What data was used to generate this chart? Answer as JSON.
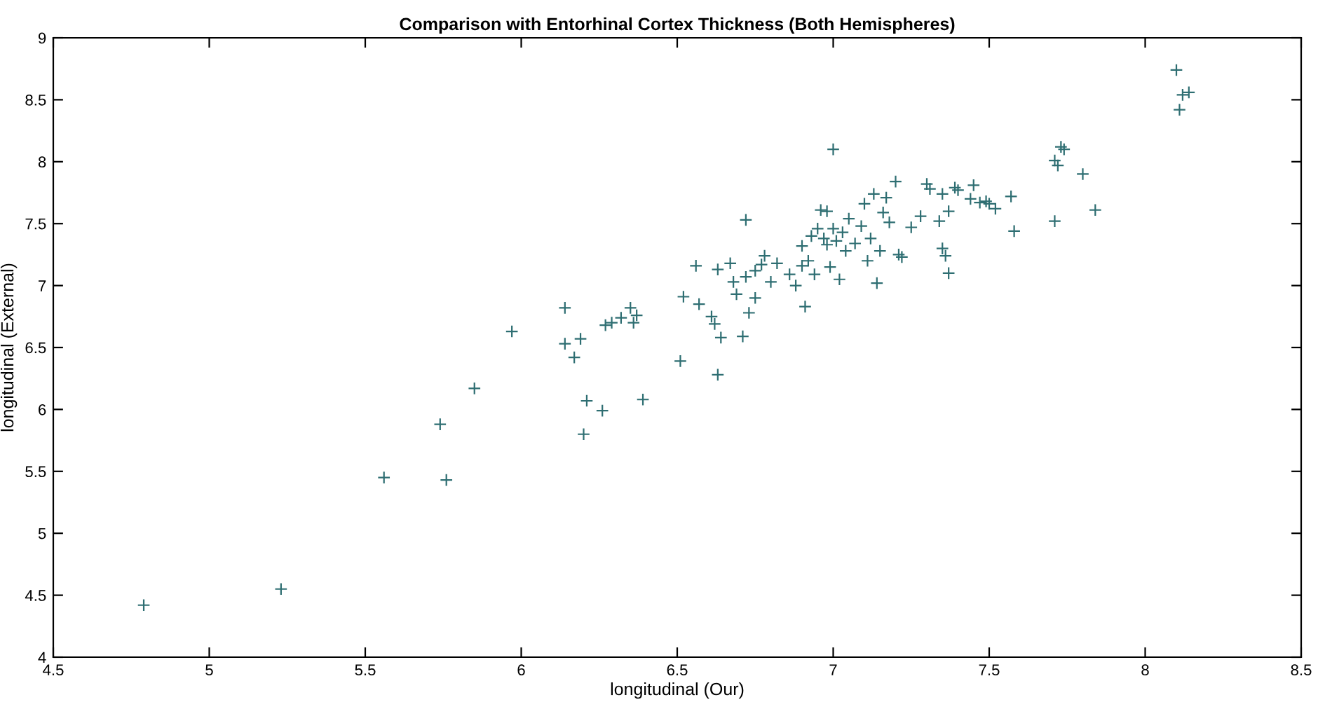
{
  "chart_data": {
    "type": "scatter",
    "title": "Comparison with Entorhinal Cortex Thickness (Both Hemispheres)",
    "xlabel": "longitudinal (Our)",
    "ylabel": "longitudinal (External)",
    "xlim": [
      4.5,
      8.5
    ],
    "ylim": [
      4,
      9
    ],
    "xticks": [
      4.5,
      5,
      5.5,
      6,
      6.5,
      7,
      7.5,
      8,
      8.5
    ],
    "yticks": [
      4,
      4.5,
      5,
      5.5,
      6,
      6.5,
      7,
      7.5,
      8,
      8.5,
      9
    ],
    "grid": false,
    "marker": "cross",
    "series": [
      {
        "color": "#2e6e72",
        "x": [
          4.79,
          5.23,
          5.56,
          5.74,
          5.76,
          5.85,
          5.97,
          6.14,
          6.14,
          6.17,
          6.19,
          6.2,
          6.21,
          6.26,
          6.27,
          6.29,
          6.32,
          6.35,
          6.36,
          6.37,
          6.39,
          6.51,
          6.52,
          6.56,
          6.57,
          6.61,
          6.62,
          6.63,
          6.63,
          6.64,
          6.67,
          6.68,
          6.69,
          6.71,
          6.72,
          6.72,
          6.73,
          6.75,
          6.75,
          6.77,
          6.78,
          6.8,
          6.82,
          6.86,
          6.88,
          6.9,
          6.9,
          6.91,
          6.92,
          6.93,
          6.94,
          6.95,
          6.96,
          6.97,
          6.98,
          6.98,
          6.99,
          7.0,
          7.0,
          7.01,
          7.02,
          7.03,
          7.04,
          7.05,
          7.07,
          7.09,
          7.1,
          7.11,
          7.12,
          7.13,
          7.14,
          7.15,
          7.16,
          7.17,
          7.18,
          7.2,
          7.21,
          7.22,
          7.25,
          7.28,
          7.3,
          7.31,
          7.34,
          7.35,
          7.35,
          7.36,
          7.37,
          7.37,
          7.39,
          7.4,
          7.44,
          7.45,
          7.47,
          7.49,
          7.5,
          7.52,
          7.57,
          7.58,
          7.71,
          7.71,
          7.72,
          7.73,
          7.74,
          7.8,
          7.84,
          8.1,
          8.11,
          8.12,
          8.14
        ],
        "values": [
          4.42,
          4.55,
          5.45,
          5.88,
          5.43,
          6.17,
          6.63,
          6.82,
          6.53,
          6.42,
          6.57,
          5.8,
          6.07,
          5.99,
          6.68,
          6.7,
          6.74,
          6.82,
          6.7,
          6.76,
          6.08,
          6.39,
          6.91,
          7.16,
          6.85,
          6.75,
          6.69,
          7.13,
          6.28,
          6.58,
          7.18,
          7.03,
          6.93,
          6.59,
          7.07,
          7.53,
          6.78,
          7.12,
          6.9,
          7.17,
          7.24,
          7.03,
          7.18,
          7.09,
          7.0,
          7.16,
          7.32,
          6.83,
          7.2,
          7.4,
          7.09,
          7.46,
          7.61,
          7.38,
          7.6,
          7.33,
          7.15,
          7.46,
          8.1,
          7.36,
          7.05,
          7.43,
          7.28,
          7.54,
          7.34,
          7.48,
          7.66,
          7.2,
          7.38,
          7.74,
          7.02,
          7.28,
          7.59,
          7.71,
          7.51,
          7.84,
          7.25,
          7.23,
          7.47,
          7.56,
          7.82,
          7.78,
          7.52,
          7.74,
          7.3,
          7.24,
          7.1,
          7.6,
          7.79,
          7.77,
          7.7,
          7.81,
          7.67,
          7.68,
          7.66,
          7.62,
          7.72,
          7.44,
          7.52,
          8.01,
          7.97,
          8.12,
          8.1,
          7.9,
          7.61,
          8.74,
          8.42,
          8.54,
          8.56
        ]
      }
    ]
  }
}
